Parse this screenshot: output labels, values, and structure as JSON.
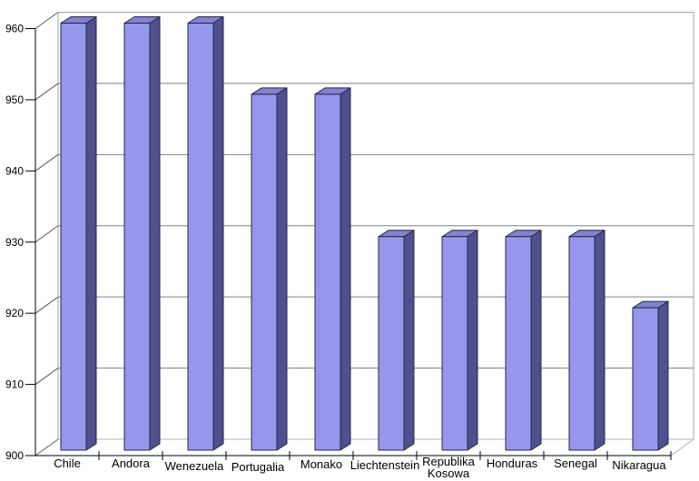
{
  "chart_data": {
    "type": "bar",
    "projection": "3d",
    "title": "",
    "xlabel": "",
    "ylabel": "",
    "categories": [
      "Chile",
      "Andora",
      "Wenezuela",
      "Portugalia",
      "Monako",
      "Liechtenstein",
      "Republika Kosowa",
      "Honduras",
      "Senegal",
      "Nikaragua"
    ],
    "values": [
      960,
      960,
      960,
      950,
      950,
      930,
      930,
      930,
      930,
      920
    ],
    "ylim": [
      900,
      960
    ],
    "yticks": [
      900,
      910,
      920,
      930,
      940,
      950,
      960
    ],
    "grid": true,
    "legend": false,
    "colors": {
      "bar_front": "#9696eb",
      "bar_top": "#8282cd",
      "bar_side": "#50508f",
      "bar_outline": "#26264d",
      "gridline": "#808080",
      "wall_border": "#a6a6a6",
      "floor_border": "#b3b3b3",
      "axis": "#000000",
      "tick_diagonal": "#595959",
      "background": "#ffffff"
    }
  }
}
